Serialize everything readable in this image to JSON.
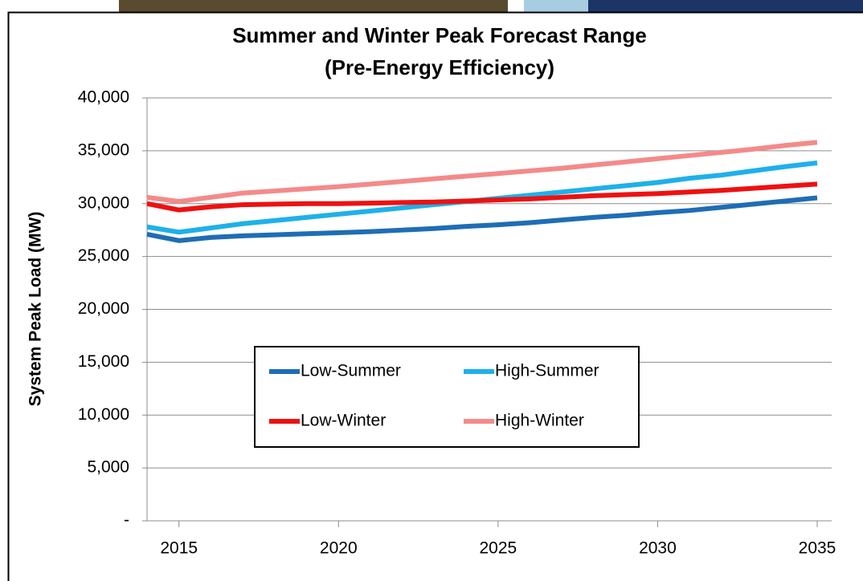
{
  "chart_data": {
    "type": "line",
    "title": "Summer and Winter Peak Forecast Range",
    "subtitle": "(Pre-Energy Efficiency)",
    "y_label": "System Peak Load (MW)",
    "x": [
      2014,
      2015,
      2016,
      2017,
      2018,
      2019,
      2020,
      2021,
      2022,
      2023,
      2024,
      2025,
      2026,
      2027,
      2028,
      2029,
      2030,
      2031,
      2032,
      2033,
      2034,
      2035
    ],
    "series": [
      {
        "name": "Low-Summer",
        "color": "#1f6db5",
        "values": [
          27100,
          26500,
          26800,
          26950,
          27050,
          27150,
          27250,
          27350,
          27500,
          27650,
          27850,
          28000,
          28200,
          28450,
          28700,
          28900,
          29150,
          29350,
          29650,
          29950,
          30250,
          30550
        ]
      },
      {
        "name": "High-Summer",
        "color": "#1fb0ea",
        "values": [
          27800,
          27300,
          27700,
          28100,
          28400,
          28700,
          29000,
          29300,
          29600,
          29900,
          30200,
          30500,
          30800,
          31100,
          31400,
          31700,
          32000,
          32400,
          32700,
          33100,
          33500,
          33850
        ]
      },
      {
        "name": "Low-Winter",
        "color": "#ee1111",
        "values": [
          30000,
          29400,
          29700,
          29900,
          29950,
          30000,
          30000,
          30050,
          30100,
          30150,
          30250,
          30350,
          30450,
          30600,
          30750,
          30850,
          30950,
          31100,
          31250,
          31450,
          31650,
          31850
        ]
      },
      {
        "name": "High-Winter",
        "color": "#f48a8a",
        "values": [
          30600,
          30200,
          30600,
          31000,
          31200,
          31400,
          31600,
          31850,
          32100,
          32350,
          32600,
          32850,
          33100,
          33350,
          33650,
          33950,
          34250,
          34550,
          34850,
          35150,
          35500,
          35800
        ]
      }
    ],
    "xlim": [
      2014,
      2035
    ],
    "xticks": [
      2015,
      2020,
      2025,
      2030,
      2035
    ],
    "ylim": [
      0,
      40000
    ],
    "yticks": [
      {
        "value": 0,
        "label": "-"
      },
      {
        "value": 5000,
        "label": "5,000"
      },
      {
        "value": 10000,
        "label": "10,000"
      },
      {
        "value": 15000,
        "label": "15,000"
      },
      {
        "value": 20000,
        "label": "20,000"
      },
      {
        "value": 25000,
        "label": "25,000"
      },
      {
        "value": 30000,
        "label": "30,000"
      },
      {
        "value": 35000,
        "label": "35,000"
      },
      {
        "value": 40000,
        "label": "40,000"
      }
    ],
    "grid": true,
    "legend": "center"
  }
}
